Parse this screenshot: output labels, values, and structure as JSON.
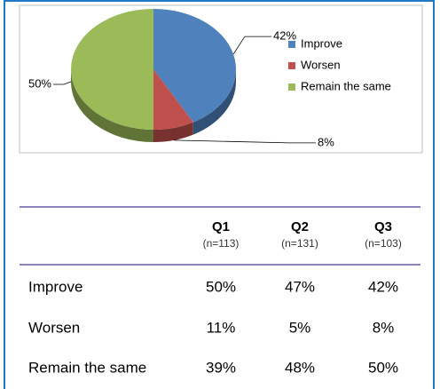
{
  "chart_data": {
    "type": "pie",
    "categories": [
      "Improve",
      "Worsen",
      "Remain the same"
    ],
    "values": [
      42,
      8,
      50
    ],
    "value_labels": [
      "42%",
      "8%",
      "50%"
    ],
    "colors": [
      "#4f81bd",
      "#c0504d",
      "#9bbb59"
    ],
    "legend": "right"
  },
  "table": {
    "columns": [
      {
        "name": "Q1",
        "n": "(n=113)"
      },
      {
        "name": "Q2",
        "n": "(n=131)"
      },
      {
        "name": "Q3",
        "n": "(n=103)"
      }
    ],
    "rows": [
      {
        "label": "Improve",
        "values": [
          "50%",
          "47%",
          "42%"
        ]
      },
      {
        "label": "Worsen",
        "values": [
          "11%",
          "5%",
          "8%"
        ]
      },
      {
        "label": "Remain the same",
        "values": [
          "39%",
          "48%",
          "50%"
        ]
      }
    ]
  }
}
